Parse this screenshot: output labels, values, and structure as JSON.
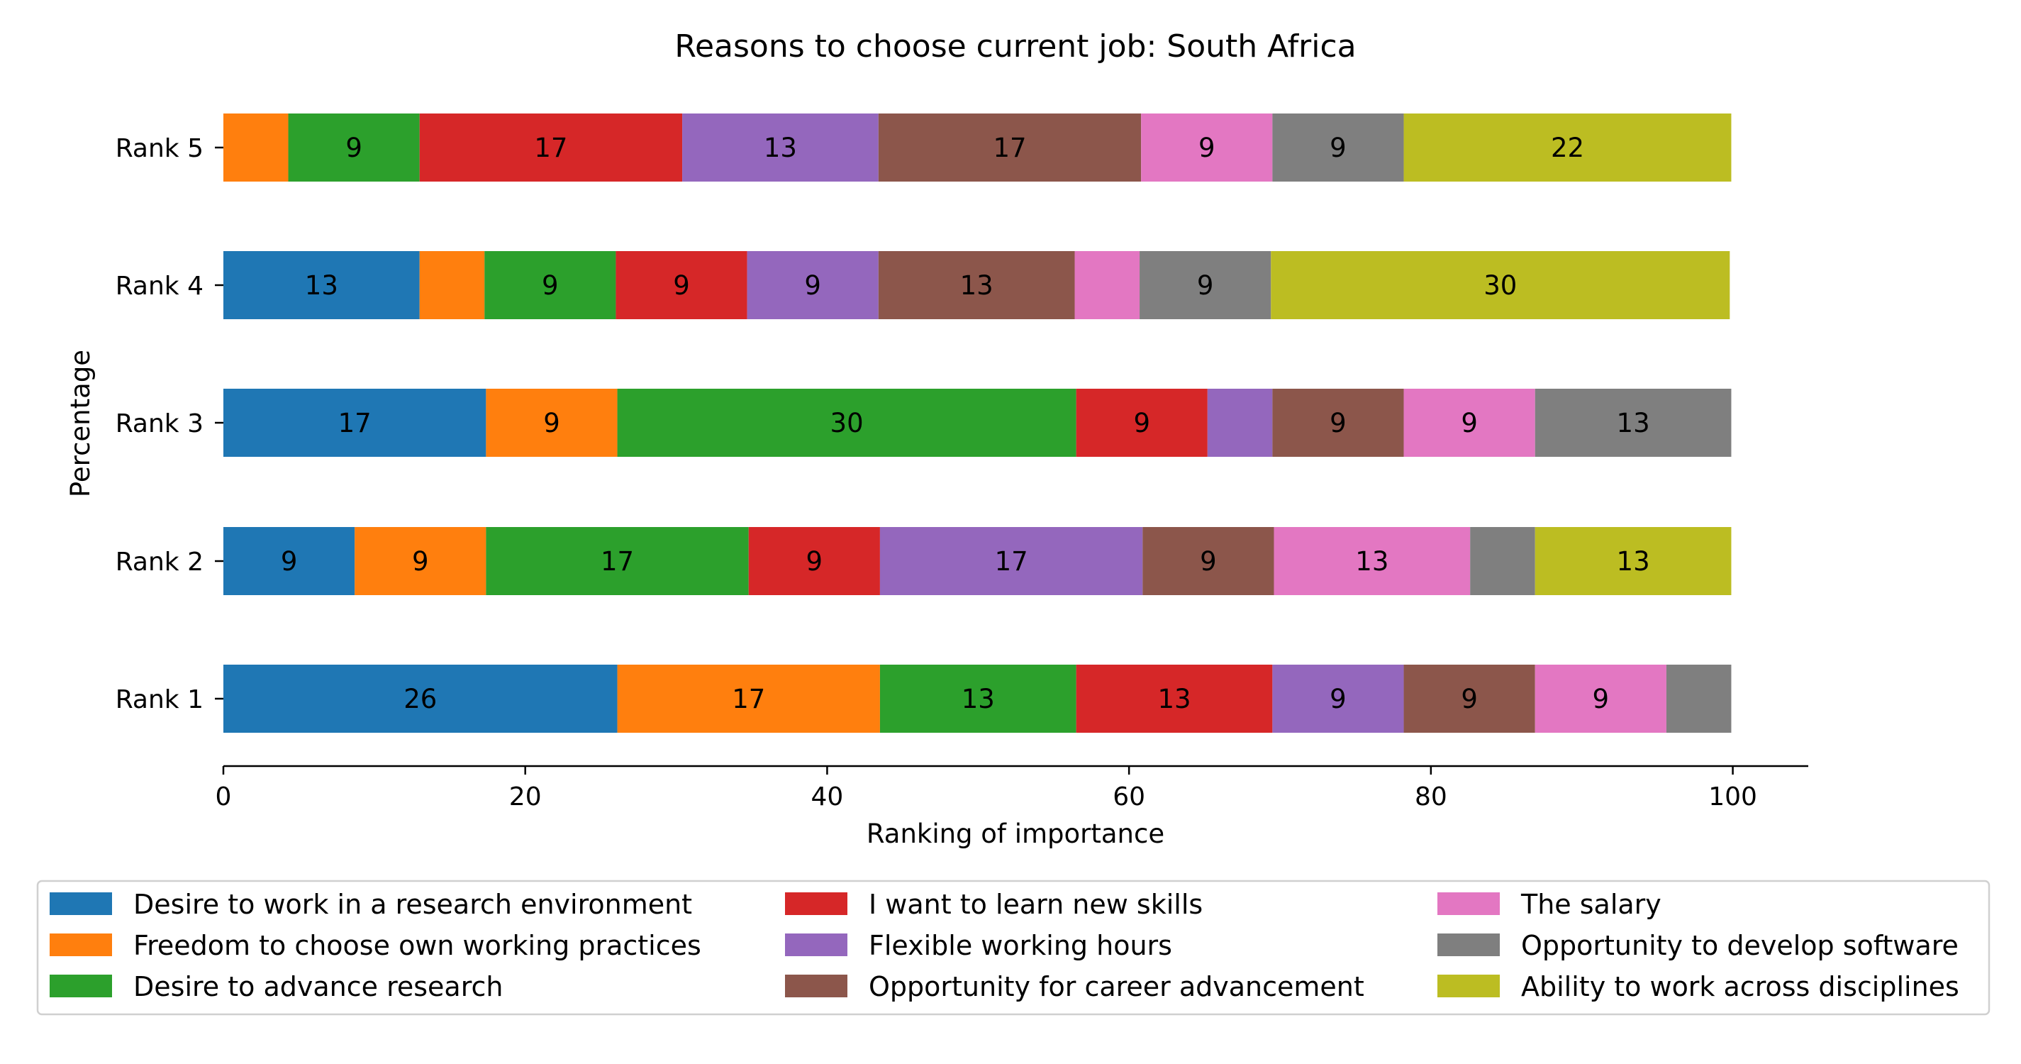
{
  "chart_data": {
    "type": "bar",
    "orientation": "horizontal",
    "stacked": true,
    "title": "Reasons to choose current job: South Africa",
    "xlabel": "Ranking of importance",
    "ylabel": "Percentage",
    "xlim": [
      0,
      105
    ],
    "xticks": [
      0,
      20,
      40,
      60,
      80,
      100
    ],
    "grid": false,
    "legend_position": "bottom",
    "categories": [
      "Rank 1",
      "Rank 2",
      "Rank 3",
      "Rank 4",
      "Rank 5"
    ],
    "series": [
      {
        "name": "Desire to work in a research environment",
        "color": "#1f77b4",
        "values": [
          26.1,
          8.7,
          17.4,
          13.0,
          0.0
        ]
      },
      {
        "name": "Freedom to choose own working practices",
        "color": "#ff7f0e",
        "values": [
          17.4,
          8.7,
          8.7,
          4.3,
          4.3
        ]
      },
      {
        "name": "Desire to advance research",
        "color": "#2ca02c",
        "values": [
          13.0,
          17.4,
          30.4,
          8.7,
          8.7
        ]
      },
      {
        "name": "I want to learn new skills",
        "color": "#d62728",
        "values": [
          13.0,
          8.7,
          8.7,
          8.7,
          17.4
        ]
      },
      {
        "name": "Flexible working hours",
        "color": "#9467bd",
        "values": [
          8.7,
          17.4,
          4.3,
          8.7,
          13.0
        ]
      },
      {
        "name": "Opportunity for career advancement",
        "color": "#8c564b",
        "values": [
          8.7,
          8.7,
          8.7,
          13.0,
          17.4
        ]
      },
      {
        "name": "The salary",
        "color": "#e377c2",
        "values": [
          8.7,
          13.0,
          8.7,
          4.3,
          8.7
        ]
      },
      {
        "name": "Opportunity to develop software",
        "color": "#7f7f7f",
        "values": [
          4.3,
          4.3,
          13.0,
          8.7,
          8.7
        ]
      },
      {
        "name": "Ability to work across disciplines",
        "color": "#bcbd22",
        "values": [
          0.0,
          13.0,
          0.0,
          30.4,
          21.7
        ]
      }
    ]
  }
}
